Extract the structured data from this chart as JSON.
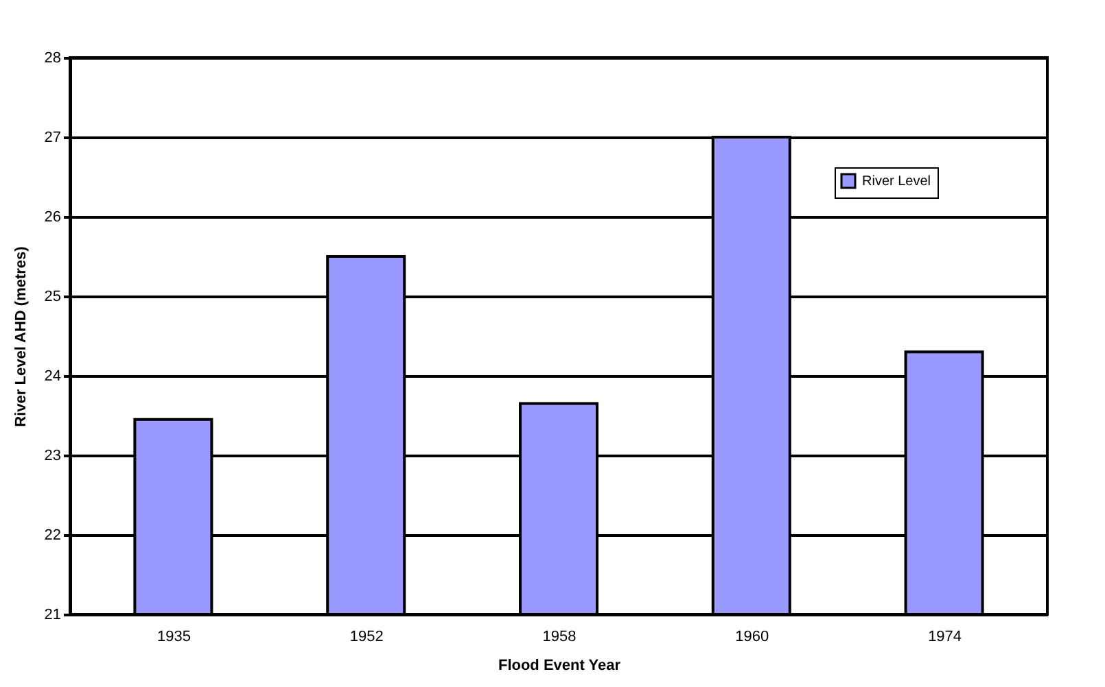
{
  "chart_data": {
    "type": "bar",
    "xlabel": "Flood Event Year",
    "ylabel": "River Level AHD (metres)",
    "categories": [
      "1935",
      "1952",
      "1958",
      "1960",
      "1974"
    ],
    "series": [
      {
        "name": "River Level",
        "color": "#9999ff",
        "values": [
          23.45,
          25.5,
          23.65,
          27.0,
          24.3
        ]
      }
    ],
    "ylim": [
      21,
      28
    ],
    "yticks": [
      21,
      22,
      23,
      24,
      25,
      26,
      27,
      28
    ],
    "grid": "y",
    "legend": "top right"
  }
}
